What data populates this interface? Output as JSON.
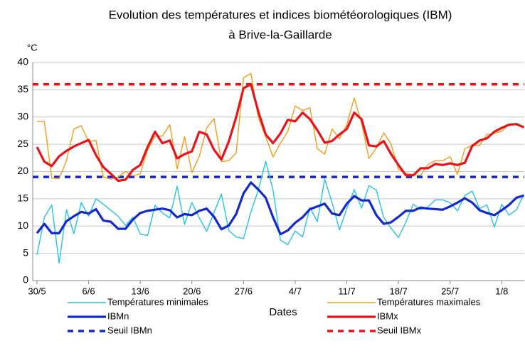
{
  "chart_data": {
    "type": "line",
    "title": "Evolution des températures et indices biométéorologiques (IBM)",
    "subtitle": "à Brive-la-Gaillarde",
    "y_label": "°C",
    "x_label": "Dates",
    "categories": [
      "30/5",
      null,
      null,
      null,
      null,
      null,
      null,
      "6/6",
      null,
      null,
      null,
      null,
      null,
      null,
      "13/6",
      null,
      null,
      null,
      null,
      null,
      null,
      "20/6",
      null,
      null,
      null,
      null,
      null,
      null,
      "27/6",
      null,
      null,
      null,
      null,
      null,
      null,
      "4/7",
      null,
      null,
      null,
      null,
      null,
      null,
      "11/7",
      null,
      null,
      null,
      null,
      null,
      null,
      "18/7",
      null,
      null,
      null,
      null,
      null,
      null,
      "25/7",
      null,
      null,
      null,
      null,
      null,
      null,
      "1/8",
      null,
      null,
      null
    ],
    "ylim": [
      0,
      40
    ],
    "yticks": [
      0,
      5,
      10,
      15,
      20,
      25,
      30,
      35,
      40
    ],
    "grid": true,
    "series": [
      {
        "name": "Températures minimales",
        "color": "#22c4ea",
        "width": 1.4,
        "values": [
          4.7,
          11.6,
          13.9,
          3.2,
          13,
          8.6,
          14.3,
          11.8,
          15,
          14,
          12.9,
          11.8,
          10.1,
          11.6,
          8.5,
          8.3,
          13.8,
          12.4,
          11.5,
          17.3,
          10.3,
          14.3,
          11.5,
          9,
          12.5,
          15.9,
          9.2,
          8,
          7.7,
          12.6,
          16.6,
          21.9,
          16.6,
          7.4,
          6.6,
          9.1,
          8,
          13.4,
          10.8,
          18.6,
          14.3,
          9.3,
          13.2,
          16.7,
          13.3,
          17.4,
          16.6,
          11.6,
          9.6,
          7.9,
          10.7,
          14,
          13,
          13.5,
          14.8,
          14.8,
          14.3,
          12.8,
          15.6,
          16.4,
          13.2,
          13.9,
          9.8,
          14,
          12,
          13,
          15.8
        ]
      },
      {
        "name": "Températures maximales",
        "color": "#f39c1a",
        "width": 1.4,
        "values": [
          29.2,
          29.2,
          18.8,
          18.7,
          22,
          27.8,
          28.4,
          25.5,
          25.7,
          19,
          18.6,
          19,
          20,
          19.2,
          19.6,
          24,
          26.5,
          26.5,
          28.6,
          20.5,
          26.4,
          19.8,
          22.8,
          28,
          29.7,
          21.8,
          22,
          23.4,
          37.2,
          38,
          29.9,
          26.4,
          22.7,
          25.2,
          27.4,
          32,
          31.2,
          31.7,
          24.2,
          23.2,
          27.8,
          26,
          28.6,
          33.5,
          28.9,
          22.4,
          24.3,
          27.1,
          25,
          20.4,
          19.7,
          19.4,
          19.3,
          21.3,
          22,
          22,
          22.7,
          19.5,
          24.2,
          24.8,
          24.8,
          26.8,
          27,
          27.4,
          28.7,
          28.8,
          28
        ]
      },
      {
        "name": "IBMn",
        "color": "#1428d0",
        "width": 3.2,
        "values": [
          8.7,
          10.4,
          8.7,
          8.7,
          10.9,
          11.8,
          12.6,
          12.3,
          13.1,
          11,
          10.8,
          9.5,
          9.5,
          11.2,
          12.4,
          12.8,
          13,
          13.2,
          12.9,
          11.6,
          12.2,
          12,
          12.8,
          13.2,
          11.7,
          9.4,
          10.1,
          12.2,
          16,
          18,
          16.7,
          15.2,
          11.6,
          8.5,
          9.2,
          10.6,
          11.6,
          13.1,
          13.6,
          14.1,
          12.3,
          12,
          14.1,
          15.5,
          14.7,
          14.7,
          12,
          10.4,
          10.7,
          11.7,
          12.8,
          12.8,
          13.4,
          13.2,
          13.1,
          13,
          13.6,
          14.3,
          15.1,
          14.3,
          12.9,
          12.4,
          12,
          12.9,
          13.9,
          15.2,
          15.6
        ]
      },
      {
        "name": "IBMx",
        "color": "#e8141a",
        "width": 3.2,
        "values": [
          24.5,
          21.8,
          21,
          22.8,
          23.8,
          24.6,
          25.2,
          25.8,
          23,
          20.8,
          19.6,
          18.3,
          18.5,
          20.3,
          21.2,
          24.5,
          27.3,
          25.2,
          25.7,
          22.4,
          23.2,
          23.7,
          27.3,
          26.8,
          24,
          22.2,
          25.5,
          30,
          35.3,
          36,
          31,
          26.8,
          25.2,
          27,
          29.5,
          29.2,
          30.8,
          29.6,
          27.6,
          25.3,
          25.6,
          26.8,
          27.8,
          30.8,
          29.6,
          24.8,
          24.6,
          25.6,
          23.2,
          21.2,
          19.3,
          19.3,
          20.6,
          20.6,
          21.4,
          21.2,
          21.5,
          21.2,
          21.6,
          24.7,
          25.7,
          26.1,
          27.3,
          28,
          28.6,
          28.7,
          28.1
        ]
      }
    ],
    "thresholds": [
      {
        "name": "Seuil IBMn",
        "color": "#1428d0",
        "value": 19
      },
      {
        "name": "Seuil IBMx",
        "color": "#e8141a",
        "value": 36
      }
    ]
  }
}
